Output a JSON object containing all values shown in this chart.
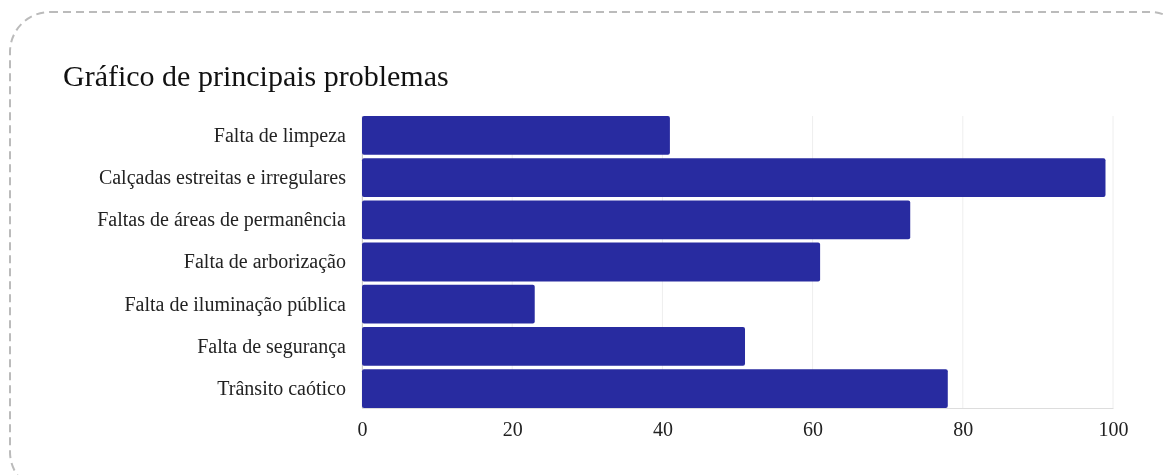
{
  "chart_data": {
    "type": "bar",
    "orientation": "horizontal",
    "title": "Gráfico de principais problemas",
    "categories": [
      "Falta de limpeza",
      "Calçadas estreitas e irregulares",
      "Faltas de áreas de permanência",
      "Falta de arborização",
      "Falta de iluminação pública",
      "Falta de segurança",
      "Trânsito caótico"
    ],
    "values": [
      41,
      99,
      73,
      61,
      23,
      51,
      78
    ],
    "color": "#282ba0",
    "xlim": [
      0,
      100
    ],
    "xticks": [
      0,
      20,
      40,
      60,
      80,
      100
    ],
    "grid": "x"
  }
}
